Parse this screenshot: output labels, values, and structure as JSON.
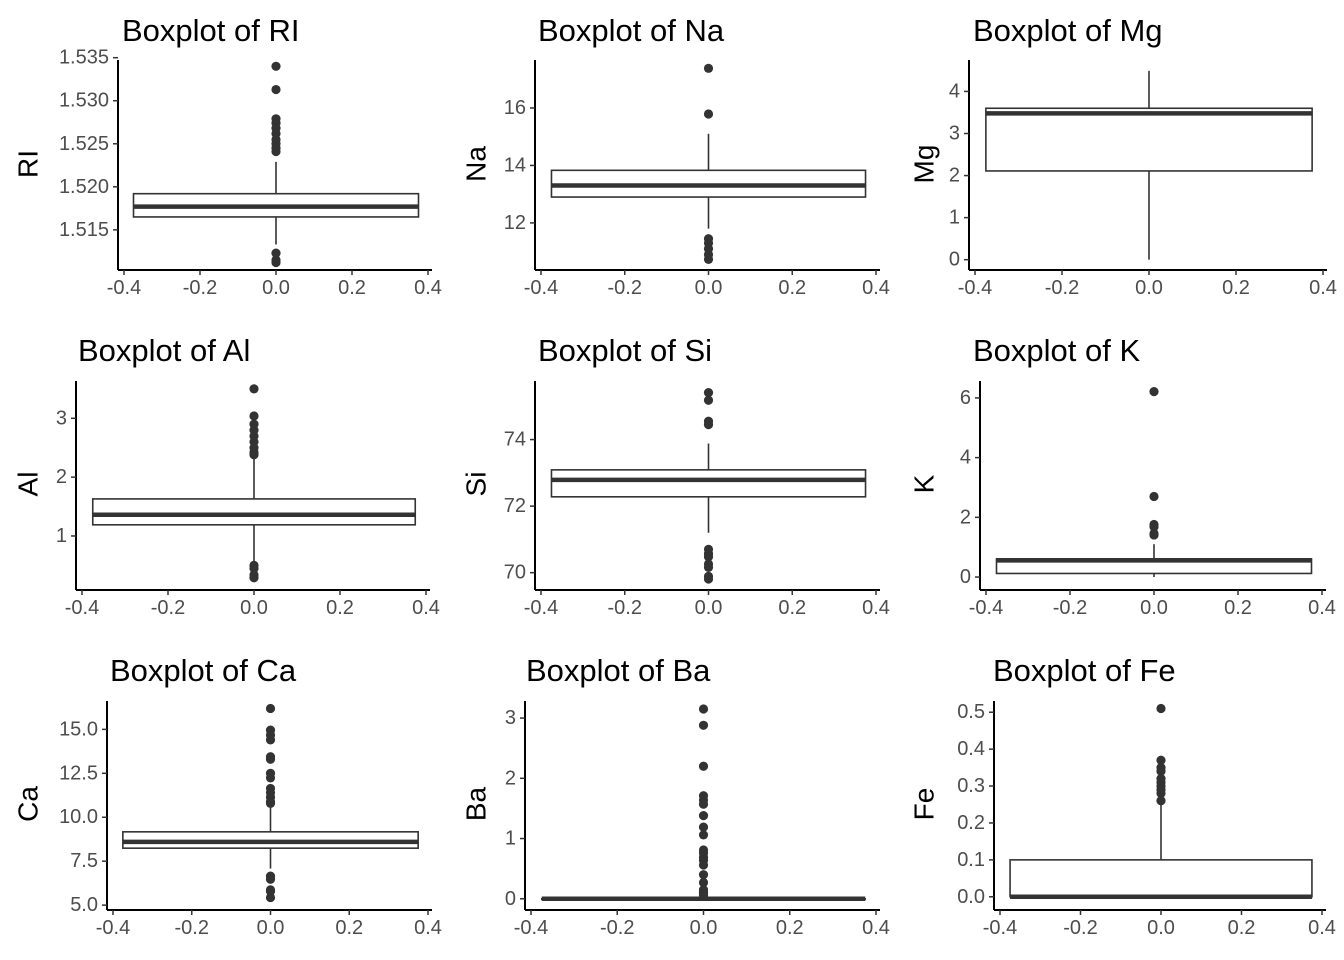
{
  "chart_data": [
    {
      "type": "boxplot",
      "title": "Boxplot of RI",
      "ylabel": "RI",
      "ylim": [
        1.5108,
        1.5345
      ],
      "yticks": [
        1.515,
        1.52,
        1.525,
        1.53,
        1.535
      ],
      "ytick_labels": [
        "1.515",
        "1.520",
        "1.525",
        "1.530",
        "1.535"
      ],
      "xlim": [
        -0.4,
        0.4
      ],
      "xticks": [
        -0.4,
        -0.2,
        0.0,
        0.2,
        0.4
      ],
      "xtick_labels": [
        "-0.4",
        "-0.2",
        "0.0",
        "0.2",
        "0.4"
      ],
      "box": {
        "q1": 1.5165,
        "median": 1.5177,
        "q3": 1.5192,
        "whisker_low": 1.5133,
        "whisker_high": 1.5229
      },
      "outliers": [
        1.534,
        1.5313,
        1.5279,
        1.5274,
        1.5268,
        1.5262,
        1.5255,
        1.525,
        1.5245,
        1.5241,
        1.5123,
        1.5115,
        1.5112
      ]
    },
    {
      "type": "boxplot",
      "title": "Boxplot of Na",
      "ylabel": "Na",
      "ylim": [
        10.5,
        17.6
      ],
      "yticks": [
        12,
        14,
        16
      ],
      "ytick_labels": [
        "12",
        "14",
        "16"
      ],
      "xlim": [
        -0.4,
        0.4
      ],
      "xticks": [
        -0.4,
        -0.2,
        0.0,
        0.2,
        0.4
      ],
      "xtick_labels": [
        "-0.4",
        "-0.2",
        "0.0",
        "0.2",
        "0.4"
      ],
      "box": {
        "q1": 12.9,
        "median": 13.3,
        "q3": 13.83,
        "whisker_low": 11.8,
        "whisker_high": 15.1
      },
      "outliers": [
        17.38,
        15.79,
        11.45,
        11.3,
        11.1,
        10.9,
        10.73
      ]
    },
    {
      "type": "boxplot",
      "title": "Boxplot of Mg",
      "ylabel": "Mg",
      "ylim": [
        -0.15,
        4.7
      ],
      "yticks": [
        0,
        1,
        2,
        3,
        4
      ],
      "ytick_labels": [
        "0",
        "1",
        "2",
        "3",
        "4"
      ],
      "xlim": [
        -0.4,
        0.4
      ],
      "xticks": [
        -0.4,
        -0.2,
        0.0,
        0.2,
        0.4
      ],
      "xtick_labels": [
        "-0.4",
        "-0.2",
        "0.0",
        "0.2",
        "0.4"
      ],
      "box": {
        "q1": 2.11,
        "median": 3.48,
        "q3": 3.6,
        "whisker_low": 0.0,
        "whisker_high": 4.49
      },
      "outliers": []
    },
    {
      "type": "boxplot",
      "title": "Boxplot of Al",
      "ylabel": "Al",
      "ylim": [
        0.15,
        3.6
      ],
      "yticks": [
        1,
        2,
        3
      ],
      "ytick_labels": [
        "1",
        "2",
        "3"
      ],
      "xlim": [
        -0.4,
        0.4
      ],
      "xticks": [
        -0.4,
        -0.2,
        0.0,
        0.2,
        0.4
      ],
      "xtick_labels": [
        "-0.4",
        "-0.2",
        "0.0",
        "0.2",
        "0.4"
      ],
      "box": {
        "q1": 1.19,
        "median": 1.36,
        "q3": 1.63,
        "whisker_low": 0.56,
        "whisker_high": 2.34
      },
      "outliers": [
        3.5,
        3.04,
        2.9,
        2.8,
        2.7,
        2.6,
        2.5,
        2.42,
        2.38,
        0.5,
        0.45,
        0.34,
        0.29
      ]
    },
    {
      "type": "boxplot",
      "title": "Boxplot of Si",
      "ylabel": "Si",
      "ylim": [
        69.6,
        75.7
      ],
      "yticks": [
        70,
        72,
        74
      ],
      "ytick_labels": [
        "70",
        "72",
        "74"
      ],
      "xlim": [
        -0.4,
        0.4
      ],
      "xticks": [
        -0.4,
        -0.2,
        0.0,
        0.2,
        0.4
      ],
      "xtick_labels": [
        "-0.4",
        "-0.2",
        "0.0",
        "0.2",
        "0.4"
      ],
      "box": {
        "q1": 72.28,
        "median": 72.79,
        "q3": 73.09,
        "whisker_low": 71.2,
        "whisker_high": 73.88
      },
      "outliers": [
        75.41,
        75.18,
        74.55,
        74.45,
        70.7,
        70.57,
        70.48,
        70.26,
        70.16,
        69.89,
        69.81
      ]
    },
    {
      "type": "boxplot",
      "title": "Boxplot of K",
      "ylabel": "K",
      "ylim": [
        -0.3,
        6.5
      ],
      "yticks": [
        0,
        2,
        4,
        6
      ],
      "ytick_labels": [
        "0",
        "2",
        "4",
        "6"
      ],
      "xlim": [
        -0.4,
        0.4
      ],
      "xticks": [
        -0.4,
        -0.2,
        0.0,
        0.2,
        0.4
      ],
      "xtick_labels": [
        "-0.4",
        "-0.2",
        "0.0",
        "0.2",
        "0.4"
      ],
      "box": {
        "q1": 0.12,
        "median": 0.56,
        "q3": 0.61,
        "whisker_low": 0.0,
        "whisker_high": 1.1
      },
      "outliers": [
        6.21,
        2.7,
        1.76,
        1.68,
        1.46,
        1.41
      ]
    },
    {
      "type": "boxplot",
      "title": "Boxplot of Ca",
      "ylabel": "Ca",
      "ylim": [
        4.95,
        16.5
      ],
      "yticks": [
        5,
        7.5,
        10,
        12.5,
        15
      ],
      "ytick_labels": [
        "5.0",
        "7.5",
        "10.0",
        "12.5",
        "15.0"
      ],
      "xlim": [
        -0.4,
        0.4
      ],
      "xticks": [
        -0.4,
        -0.2,
        0.0,
        0.2,
        0.4
      ],
      "xtick_labels": [
        "-0.4",
        "-0.2",
        "0.0",
        "0.2",
        "0.4"
      ],
      "box": {
        "q1": 8.24,
        "median": 8.6,
        "q3": 9.17,
        "whisker_low": 7.08,
        "whisker_high": 10.56
      },
      "outliers": [
        16.19,
        14.96,
        14.68,
        14.4,
        13.44,
        13.3,
        12.5,
        12.24,
        11.64,
        11.41,
        11.14,
        10.88,
        10.79,
        6.65,
        6.47,
        5.87,
        5.79,
        5.43
      ]
    },
    {
      "type": "boxplot",
      "title": "Boxplot of Ba",
      "ylabel": "Ba",
      "ylim": [
        -0.12,
        3.25
      ],
      "yticks": [
        0,
        1,
        2,
        3
      ],
      "ytick_labels": [
        "0",
        "1",
        "2",
        "3"
      ],
      "xlim": [
        -0.4,
        0.4
      ],
      "xticks": [
        -0.4,
        -0.2,
        0.0,
        0.2,
        0.4
      ],
      "xtick_labels": [
        "-0.4",
        "-0.2",
        "0.0",
        "0.2",
        "0.4"
      ],
      "box": {
        "q1": 0.0,
        "median": 0.0,
        "q3": 0.0,
        "whisker_low": 0.0,
        "whisker_high": 0.0
      },
      "outliers": [
        3.15,
        2.88,
        2.2,
        1.71,
        1.64,
        1.57,
        1.38,
        1.19,
        1.06,
        0.81,
        0.76,
        0.69,
        0.64,
        0.56,
        0.4,
        0.27,
        0.15,
        0.11,
        0.09,
        0.06
      ]
    },
    {
      "type": "boxplot",
      "title": "Boxplot of Fe",
      "ylabel": "Fe",
      "ylim": [
        -0.025,
        0.525
      ],
      "yticks": [
        0,
        0.1,
        0.2,
        0.3,
        0.4,
        0.5
      ],
      "ytick_labels": [
        "0.0",
        "0.1",
        "0.2",
        "0.3",
        "0.4",
        "0.5"
      ],
      "xlim": [
        -0.4,
        0.4
      ],
      "xticks": [
        -0.4,
        -0.2,
        0.0,
        0.2,
        0.4
      ],
      "xtick_labels": [
        "-0.4",
        "-0.2",
        "0.0",
        "0.2",
        "0.4"
      ],
      "box": {
        "q1": 0.0,
        "median": 0.0,
        "q3": 0.1,
        "whisker_low": 0.0,
        "whisker_high": 0.25
      },
      "outliers": [
        0.51,
        0.37,
        0.35,
        0.34,
        0.32,
        0.31,
        0.3,
        0.29,
        0.28,
        0.26
      ]
    }
  ]
}
